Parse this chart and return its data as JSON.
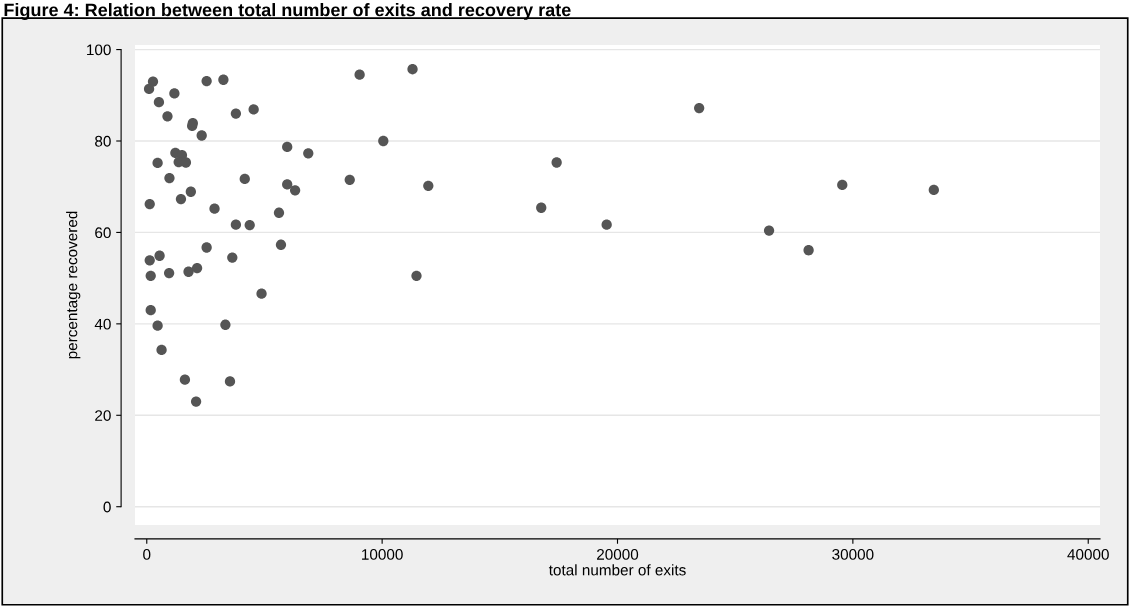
{
  "chart_data": {
    "type": "scatter",
    "title": "Figure 4: Relation between total number of exits and recovery rate",
    "xlabel": "total number of exits",
    "ylabel": "percentage recovered",
    "x": [
      265,
      98,
      1174,
      517,
      2544,
      3256,
      880,
      3787,
      4542,
      1957,
      1929,
      2334,
      5967,
      6862,
      1216,
      1495,
      1356,
      1663,
      461,
      964,
      4164,
      5967,
      6303,
      1873,
      1453,
      126,
      2879,
      5618,
      3787,
      4374,
      5702,
      2544,
      545,
      126,
      3634,
      168,
      950,
      1775,
      2138,
      4877,
      168,
      461,
      3341,
      629,
      1621,
      3536,
      2096,
      9044,
      11292,
      10050,
      8624,
      11962,
      11460,
      16760,
      17415,
      19540,
      23470,
      26440,
      28120,
      29550,
      33440
    ],
    "values": [
      93.0,
      91.4,
      90.4,
      88.5,
      93.1,
      93.4,
      85.4,
      86.0,
      86.9,
      83.9,
      83.3,
      81.2,
      78.7,
      77.3,
      77.4,
      76.9,
      75.4,
      75.3,
      75.2,
      71.9,
      71.7,
      70.5,
      69.2,
      68.9,
      67.3,
      66.2,
      65.2,
      64.3,
      61.7,
      61.6,
      57.3,
      56.7,
      54.9,
      53.9,
      54.5,
      50.5,
      51.1,
      51.4,
      52.2,
      46.6,
      43.0,
      39.6,
      39.8,
      34.3,
      27.8,
      27.4,
      23.0,
      94.5,
      95.7,
      80.0,
      71.5,
      70.2,
      50.5,
      65.4,
      75.3,
      61.7,
      87.2,
      60.4,
      56.1,
      70.4,
      69.3
    ],
    "color": "#555555",
    "marker": "circle",
    "xlim": [
      -500,
      40500
    ],
    "ylim": [
      -4,
      101
    ],
    "xticks": [
      0,
      10000,
      20000,
      30000,
      40000
    ],
    "yticks": [
      0,
      20,
      40,
      60,
      80,
      100
    ],
    "grid": "y"
  }
}
